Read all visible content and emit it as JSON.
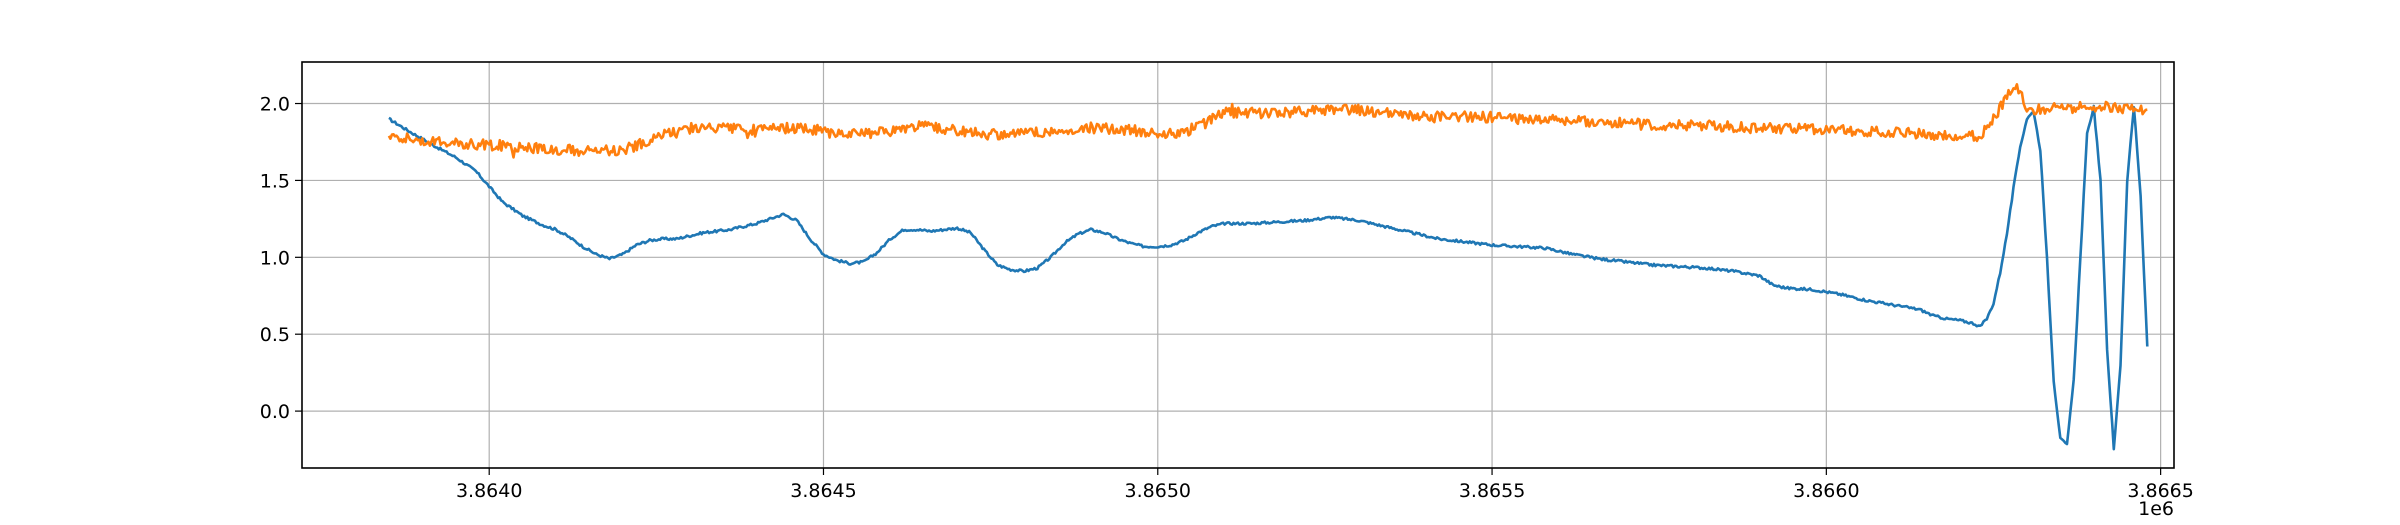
{
  "chart_data": {
    "type": "line",
    "title": "",
    "xlabel": "",
    "ylabel": "",
    "x_offset_label": "1e6",
    "xlim": [
      3.86372,
      3.86652
    ],
    "ylim": [
      -0.37,
      2.27
    ],
    "grid": true,
    "legend": "none",
    "x_ticks": [
      {
        "value": 3.864,
        "label": "3.8640"
      },
      {
        "value": 3.8645,
        "label": "3.8645"
      },
      {
        "value": 3.865,
        "label": "3.8650"
      },
      {
        "value": 3.8655,
        "label": "3.8655"
      },
      {
        "value": 3.866,
        "label": "3.8660"
      },
      {
        "value": 3.8665,
        "label": "3.8665"
      }
    ],
    "y_ticks": [
      {
        "value": 0.0,
        "label": "0.0"
      },
      {
        "value": 0.5,
        "label": "0.5"
      },
      {
        "value": 1.0,
        "label": "1.0"
      },
      {
        "value": 1.5,
        "label": "1.5"
      },
      {
        "value": 2.0,
        "label": "2.0"
      }
    ],
    "series": [
      {
        "color": "#1f77b4",
        "points": [
          [
            3.86385,
            1.9
          ],
          [
            3.86388,
            1.82
          ],
          [
            3.86392,
            1.72
          ],
          [
            3.86395,
            1.65
          ],
          [
            3.86398,
            1.56
          ],
          [
            3.864,
            1.46
          ],
          [
            3.86402,
            1.36
          ],
          [
            3.86405,
            1.27
          ],
          [
            3.86408,
            1.21
          ],
          [
            3.8641,
            1.18
          ],
          [
            3.86412,
            1.13
          ],
          [
            3.86414,
            1.07
          ],
          [
            3.86416,
            1.02
          ],
          [
            3.86418,
            0.99
          ],
          [
            3.8642,
            1.02
          ],
          [
            3.86422,
            1.08
          ],
          [
            3.86424,
            1.11
          ],
          [
            3.86426,
            1.12
          ],
          [
            3.86428,
            1.12
          ],
          [
            3.8643,
            1.14
          ],
          [
            3.86432,
            1.16
          ],
          [
            3.86434,
            1.17
          ],
          [
            3.86436,
            1.18
          ],
          [
            3.86438,
            1.2
          ],
          [
            3.8644,
            1.22
          ],
          [
            3.86442,
            1.25
          ],
          [
            3.86444,
            1.28
          ],
          [
            3.86446,
            1.24
          ],
          [
            3.86448,
            1.12
          ],
          [
            3.8645,
            1.02
          ],
          [
            3.86452,
            0.98
          ],
          [
            3.86454,
            0.96
          ],
          [
            3.86456,
            0.97
          ],
          [
            3.86458,
            1.03
          ],
          [
            3.8646,
            1.12
          ],
          [
            3.86462,
            1.18
          ],
          [
            3.86464,
            1.18
          ],
          [
            3.86466,
            1.17
          ],
          [
            3.86468,
            1.18
          ],
          [
            3.8647,
            1.19
          ],
          [
            3.86472,
            1.16
          ],
          [
            3.86474,
            1.05
          ],
          [
            3.86476,
            0.95
          ],
          [
            3.86478,
            0.92
          ],
          [
            3.8648,
            0.91
          ],
          [
            3.86482,
            0.93
          ],
          [
            3.86484,
            1.0
          ],
          [
            3.86486,
            1.09
          ],
          [
            3.86488,
            1.15
          ],
          [
            3.8649,
            1.18
          ],
          [
            3.86492,
            1.16
          ],
          [
            3.86494,
            1.12
          ],
          [
            3.86496,
            1.09
          ],
          [
            3.86498,
            1.07
          ],
          [
            3.865,
            1.07
          ],
          [
            3.86502,
            1.08
          ],
          [
            3.86504,
            1.11
          ],
          [
            3.86506,
            1.16
          ],
          [
            3.86508,
            1.2
          ],
          [
            3.8651,
            1.22
          ],
          [
            3.86514,
            1.22
          ],
          [
            3.86518,
            1.23
          ],
          [
            3.86522,
            1.24
          ],
          [
            3.86526,
            1.26
          ],
          [
            3.8653,
            1.24
          ],
          [
            3.86534,
            1.2
          ],
          [
            3.86538,
            1.16
          ],
          [
            3.86542,
            1.12
          ],
          [
            3.86546,
            1.1
          ],
          [
            3.8655,
            1.08
          ],
          [
            3.86554,
            1.07
          ],
          [
            3.86558,
            1.06
          ],
          [
            3.86562,
            1.02
          ],
          [
            3.86566,
            0.99
          ],
          [
            3.8657,
            0.97
          ],
          [
            3.86574,
            0.95
          ],
          [
            3.86578,
            0.94
          ],
          [
            3.86582,
            0.93
          ],
          [
            3.86586,
            0.91
          ],
          [
            3.8659,
            0.88
          ],
          [
            3.86592,
            0.82
          ],
          [
            3.86594,
            0.8
          ],
          [
            3.86598,
            0.79
          ],
          [
            3.86602,
            0.76
          ],
          [
            3.86606,
            0.72
          ],
          [
            3.8661,
            0.69
          ],
          [
            3.86614,
            0.66
          ],
          [
            3.86616,
            0.62
          ],
          [
            3.86618,
            0.6
          ],
          [
            3.8662,
            0.59
          ],
          [
            3.86622,
            0.57
          ],
          [
            3.86623,
            0.55
          ],
          [
            3.86624,
            0.6
          ],
          [
            3.86625,
            0.7
          ],
          [
            3.86626,
            0.9
          ],
          [
            3.86627,
            1.15
          ],
          [
            3.86628,
            1.45
          ],
          [
            3.86629,
            1.72
          ],
          [
            3.8663,
            1.9
          ],
          [
            3.86631,
            1.95
          ],
          [
            3.86632,
            1.7
          ],
          [
            3.86633,
            1.0
          ],
          [
            3.86634,
            0.2
          ],
          [
            3.86635,
            -0.18
          ],
          [
            3.86636,
            -0.22
          ],
          [
            3.86637,
            0.2
          ],
          [
            3.86638,
            1.0
          ],
          [
            3.86639,
            1.8
          ],
          [
            3.8664,
            1.98
          ],
          [
            3.86641,
            1.5
          ],
          [
            3.86642,
            0.4
          ],
          [
            3.86643,
            -0.25
          ],
          [
            3.86644,
            0.3
          ],
          [
            3.86645,
            1.5
          ],
          [
            3.86646,
            1.98
          ],
          [
            3.86647,
            1.4
          ],
          [
            3.86648,
            0.42
          ]
        ]
      },
      {
        "color": "#ff7f0e",
        "points": [
          [
            3.86385,
            1.8
          ],
          [
            3.8639,
            1.76
          ],
          [
            3.86395,
            1.74
          ],
          [
            3.864,
            1.73
          ],
          [
            3.86405,
            1.72
          ],
          [
            3.8641,
            1.7
          ],
          [
            3.86415,
            1.69
          ],
          [
            3.8642,
            1.7
          ],
          [
            3.86423,
            1.74
          ],
          [
            3.86426,
            1.8
          ],
          [
            3.8643,
            1.84
          ],
          [
            3.86435,
            1.84
          ],
          [
            3.8644,
            1.83
          ],
          [
            3.86445,
            1.84
          ],
          [
            3.8645,
            1.83
          ],
          [
            3.86455,
            1.8
          ],
          [
            3.8646,
            1.82
          ],
          [
            3.86465,
            1.86
          ],
          [
            3.8647,
            1.82
          ],
          [
            3.86475,
            1.8
          ],
          [
            3.8648,
            1.81
          ],
          [
            3.86485,
            1.82
          ],
          [
            3.8649,
            1.84
          ],
          [
            3.86495,
            1.83
          ],
          [
            3.865,
            1.81
          ],
          [
            3.86503,
            1.8
          ],
          [
            3.86506,
            1.85
          ],
          [
            3.8651,
            1.94
          ],
          [
            3.86515,
            1.94
          ],
          [
            3.8652,
            1.94
          ],
          [
            3.86525,
            1.96
          ],
          [
            3.8653,
            1.96
          ],
          [
            3.86535,
            1.93
          ],
          [
            3.8654,
            1.91
          ],
          [
            3.86545,
            1.92
          ],
          [
            3.8655,
            1.91
          ],
          [
            3.86555,
            1.9
          ],
          [
            3.8656,
            1.89
          ],
          [
            3.86565,
            1.88
          ],
          [
            3.8657,
            1.87
          ],
          [
            3.86575,
            1.86
          ],
          [
            3.8658,
            1.86
          ],
          [
            3.86585,
            1.85
          ],
          [
            3.8659,
            1.84
          ],
          [
            3.86595,
            1.84
          ],
          [
            3.866,
            1.83
          ],
          [
            3.86605,
            1.82
          ],
          [
            3.8661,
            1.81
          ],
          [
            3.86615,
            1.8
          ],
          [
            3.8662,
            1.78
          ],
          [
            3.86623,
            1.79
          ],
          [
            3.86625,
            1.9
          ],
          [
            3.86627,
            2.04
          ],
          [
            3.86628,
            2.12
          ],
          [
            3.86629,
            2.08
          ],
          [
            3.8663,
            1.97
          ],
          [
            3.86632,
            1.96
          ],
          [
            3.86635,
            1.97
          ],
          [
            3.8664,
            1.98
          ],
          [
            3.86645,
            1.97
          ],
          [
            3.86648,
            1.96
          ]
        ]
      }
    ]
  }
}
